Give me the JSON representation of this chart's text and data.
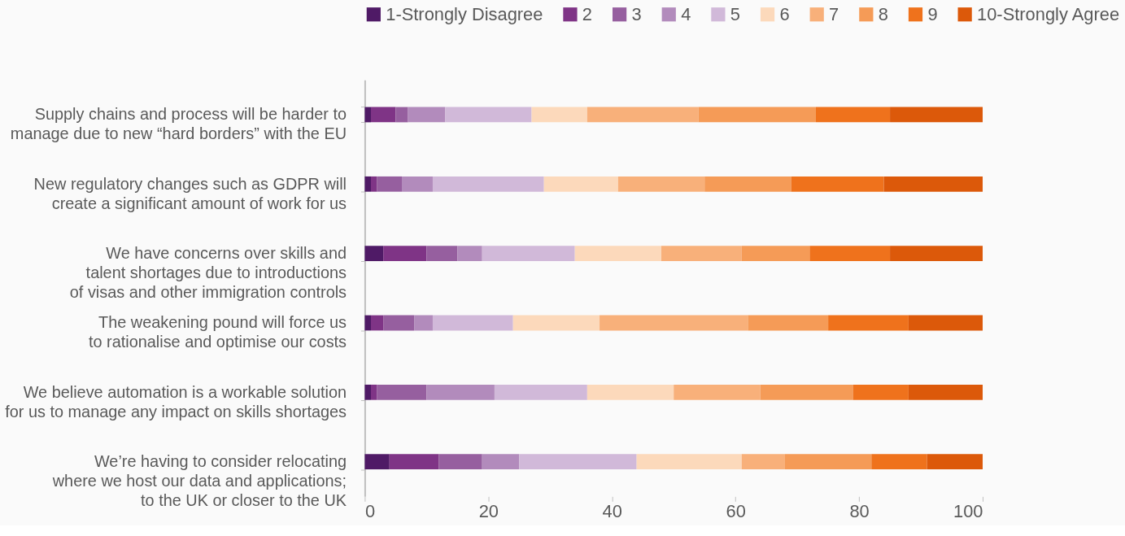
{
  "chart_data": {
    "type": "bar",
    "orientation": "horizontal",
    "stacked": true,
    "categories": [
      "Supply chains and process will be harder to\nmanage due to new “hard borders” with the EU",
      "New regulatory changes such as GDPR will\ncreate a significant amount of work for us",
      "We have concerns over skills and\ntalent shortages due to introductions\nof visas and other immigration controls",
      "The weakening pound will force us\nto rationalise and optimise our costs",
      "We believe automation is a workable solution\nfor us to manage any impact on skills shortages",
      "We’re having to consider relocating\nwhere we host our data and applications;\nto the UK or closer to the UK"
    ],
    "series": [
      {
        "name": "1-Strongly Disagree",
        "color": "#4f1a66",
        "values": [
          1,
          1,
          3,
          1,
          1,
          4
        ]
      },
      {
        "name": "2",
        "color": "#7f3486",
        "values": [
          4,
          1,
          7,
          2,
          1,
          8
        ]
      },
      {
        "name": "3",
        "color": "#965f9f",
        "values": [
          2,
          4,
          5,
          5,
          8,
          7
        ]
      },
      {
        "name": "4",
        "color": "#b28bbc",
        "values": [
          6,
          5,
          4,
          3,
          11,
          6
        ]
      },
      {
        "name": "5",
        "color": "#d1b9d9",
        "values": [
          14,
          18,
          15,
          13,
          15,
          19
        ]
      },
      {
        "name": "6",
        "color": "#fcd9bb",
        "values": [
          9,
          12,
          14,
          14,
          14,
          17
        ]
      },
      {
        "name": "7",
        "color": "#f8b07a",
        "values": [
          18,
          14,
          13,
          24,
          14,
          7
        ]
      },
      {
        "name": "8",
        "color": "#f59b57",
        "values": [
          19,
          14,
          11,
          13,
          15,
          14
        ]
      },
      {
        "name": "9",
        "color": "#ef721c",
        "values": [
          12,
          15,
          13,
          13,
          9,
          9
        ]
      },
      {
        "name": "10-Strongly Agree",
        "color": "#dc590a",
        "values": [
          15,
          16,
          15,
          12,
          12,
          9
        ]
      }
    ],
    "xlim": [
      0,
      100
    ],
    "xticks": [
      0,
      20,
      40,
      60,
      80,
      100
    ],
    "grid": false,
    "legend": "top"
  }
}
